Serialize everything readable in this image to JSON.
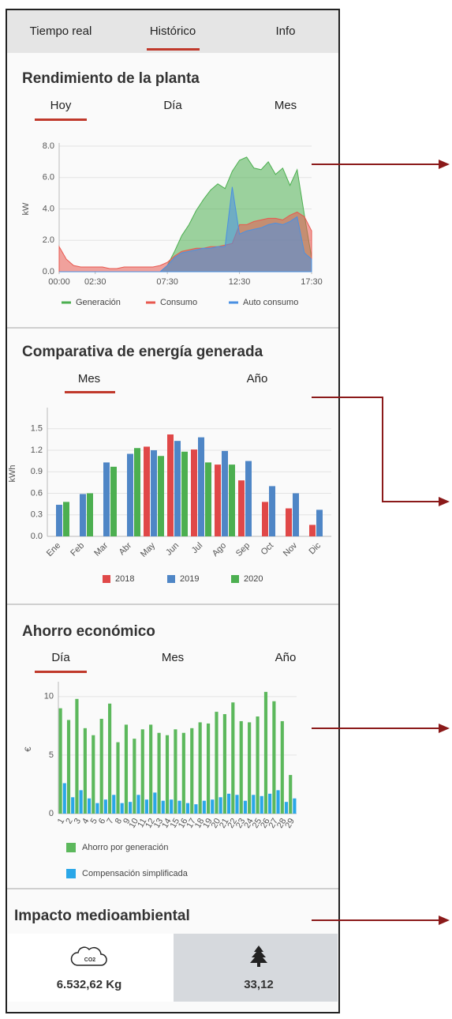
{
  "top_tabs": [
    "Tiempo real",
    "Histórico",
    "Info"
  ],
  "sections": [
    {
      "title": "Rendimiento de la planta",
      "subtabs": [
        "Hoy",
        "Día",
        "Mes"
      ]
    },
    {
      "title": "Comparativa de energía generada",
      "subtabs": [
        "Mes",
        "Año"
      ]
    },
    {
      "title": "Ahorro económico",
      "subtabs": [
        "Día",
        "Mes",
        "Año"
      ]
    },
    {
      "title": "Impacto medioambiental"
    }
  ],
  "chart_data": [
    {
      "type": "area",
      "y_label": "kW",
      "x": [
        0,
        0.5,
        1,
        1.5,
        2,
        2.5,
        3,
        3.5,
        4,
        4.5,
        5,
        5.5,
        6,
        6.5,
        7,
        7.5,
        8,
        8.5,
        9,
        9.5,
        10,
        10.5,
        11,
        11.5,
        12,
        12.5,
        13,
        13.5,
        14,
        14.5,
        15,
        15.5,
        16,
        16.5,
        17,
        17.5
      ],
      "xlim": [
        0,
        17.5
      ],
      "xticks": [
        {
          "value": 0,
          "label": "00:00"
        },
        {
          "value": 2.5,
          "label": "02:30"
        },
        {
          "value": 7.5,
          "label": "07:30"
        },
        {
          "value": 12.5,
          "label": "12:30"
        },
        {
          "value": 17.5,
          "label": "17:30"
        }
      ],
      "ylim": [
        0,
        8
      ],
      "yticks": [
        {
          "value": 0,
          "label": "0.0"
        },
        {
          "value": 2,
          "label": "2.0"
        },
        {
          "value": 4,
          "label": "4.0"
        },
        {
          "value": 6,
          "label": "6.0"
        },
        {
          "value": 8,
          "label": "8.0"
        }
      ],
      "grid": true,
      "series": [
        {
          "name": "Generación",
          "color": "#4caf50",
          "values": [
            0,
            0,
            0,
            0,
            0,
            0,
            0,
            0,
            0,
            0,
            0,
            0,
            0,
            0,
            0,
            0.4,
            1.3,
            2.3,
            3.0,
            3.9,
            4.6,
            5.2,
            5.6,
            5.3,
            6.4,
            7.1,
            7.3,
            6.6,
            6.5,
            7.0,
            6.2,
            6.6,
            5.5,
            6.5,
            3.6,
            0.9
          ]
        },
        {
          "name": "Consumo",
          "color": "#e8584f",
          "values": [
            1.6,
            0.8,
            0.4,
            0.3,
            0.3,
            0.3,
            0.3,
            0.2,
            0.2,
            0.3,
            0.3,
            0.3,
            0.3,
            0.3,
            0.4,
            0.6,
            1.0,
            1.3,
            1.4,
            1.5,
            1.5,
            1.6,
            1.6,
            1.7,
            1.8,
            3.0,
            3.0,
            3.2,
            3.3,
            3.4,
            3.4,
            3.3,
            3.6,
            3.8,
            3.5,
            2.6
          ]
        },
        {
          "name": "Auto consumo",
          "color": "#4a90e2",
          "values": [
            0,
            0,
            0,
            0,
            0,
            0,
            0,
            0,
            0,
            0,
            0,
            0,
            0,
            0,
            0,
            0.4,
            0.9,
            1.2,
            1.3,
            1.4,
            1.5,
            1.5,
            1.6,
            1.6,
            5.4,
            2.4,
            2.6,
            2.7,
            2.8,
            3.0,
            3.1,
            3.0,
            3.2,
            3.5,
            1.2,
            0.8
          ]
        }
      ]
    },
    {
      "type": "bar",
      "y_label": "kWh",
      "categories": [
        "Ene",
        "Feb",
        "Mar",
        "Abr",
        "May",
        "Jun",
        "Jul",
        "Ago",
        "Sep",
        "Oct",
        "Nov",
        "Dic"
      ],
      "ylim": [
        0,
        1.75
      ],
      "yticks": [
        {
          "value": 0,
          "label": "0.0"
        },
        0.3,
        0.6,
        0.9,
        1.2,
        1.5
      ],
      "grid": true,
      "legend": "bottom",
      "series": [
        {
          "name": "2018",
          "color": "#e04848",
          "values": [
            null,
            null,
            null,
            null,
            1.25,
            1.42,
            1.21,
            1.0,
            0.78,
            0.48,
            0.39,
            0.16
          ]
        },
        {
          "name": "2019",
          "color": "#4f86c6",
          "values": [
            0.44,
            0.59,
            1.03,
            1.15,
            1.2,
            1.33,
            1.38,
            1.19,
            1.05,
            0.7,
            0.6,
            0.37
          ]
        },
        {
          "name": "2020",
          "color": "#4caf50",
          "values": [
            0.48,
            0.6,
            0.97,
            1.23,
            1.12,
            1.18,
            1.03,
            1.0,
            null,
            null,
            null,
            null
          ]
        }
      ]
    },
    {
      "type": "bar",
      "y_label": "€",
      "categories": [
        "1",
        "2",
        "3",
        "4",
        "5",
        "6",
        "7",
        "8",
        "9",
        "10",
        "11",
        "12",
        "13",
        "14",
        "15",
        "16",
        "17",
        "18",
        "19",
        "20",
        "21",
        "22",
        "23",
        "24",
        "25",
        "26",
        "27",
        "28",
        "29"
      ],
      "ylim": [
        0,
        11
      ],
      "yticks": [
        0,
        5,
        10
      ],
      "grid": true,
      "legend": "bottom",
      "series": [
        {
          "name": "Ahorro por generación",
          "color": "#5cb85c",
          "values": [
            9.0,
            8.0,
            9.8,
            7.3,
            6.7,
            8.1,
            9.4,
            6.1,
            7.6,
            6.4,
            7.2,
            7.6,
            6.9,
            6.7,
            7.2,
            6.9,
            7.3,
            7.8,
            7.7,
            8.7,
            8.5,
            9.5,
            7.9,
            7.8,
            8.3,
            10.4,
            9.6,
            7.9,
            3.3
          ]
        },
        {
          "name": "Compensación simplificada",
          "color": "#2aa7e8",
          "values": [
            2.6,
            1.4,
            2.0,
            1.3,
            0.9,
            1.2,
            1.6,
            0.9,
            1.0,
            1.6,
            1.2,
            1.8,
            1.1,
            1.2,
            1.1,
            0.9,
            0.8,
            1.1,
            1.2,
            1.4,
            1.7,
            1.6,
            1.1,
            1.6,
            1.5,
            1.7,
            2.0,
            1.0,
            1.3
          ]
        }
      ]
    }
  ],
  "impact": {
    "co2_icon": "CO2",
    "co2": "6.532,62 Kg",
    "trees": "33,12"
  }
}
